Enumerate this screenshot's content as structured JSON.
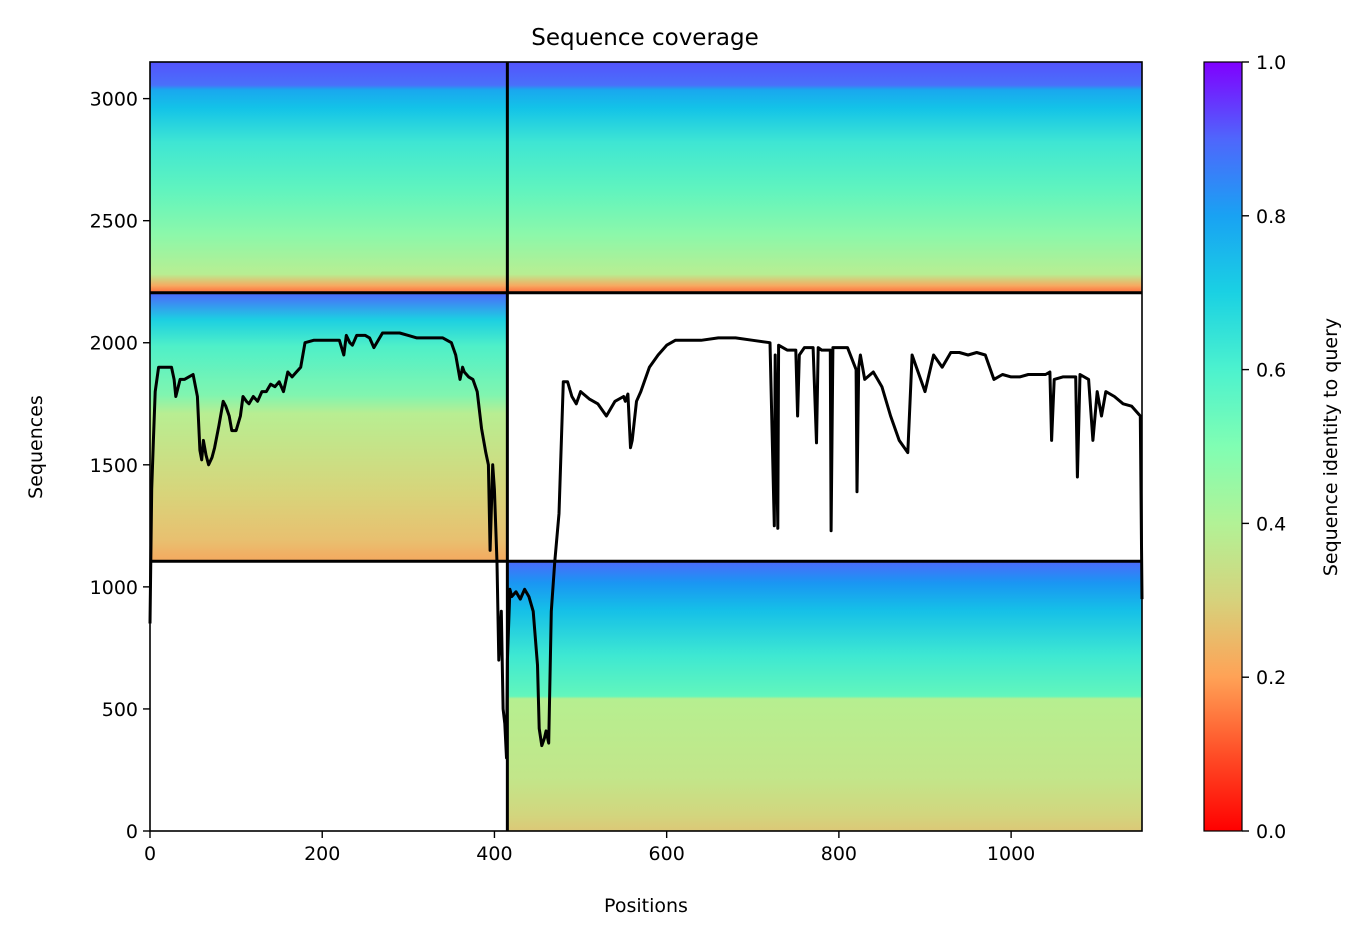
{
  "chart_data": {
    "type": "heatmap",
    "title": "Sequence coverage",
    "xlabel": "Positions",
    "ylabel": "Sequences",
    "xlim": [
      0,
      1152
    ],
    "ylim": [
      0,
      3150
    ],
    "xticks": [
      0,
      200,
      400,
      600,
      800,
      1000
    ],
    "yticks": [
      0,
      500,
      1000,
      1500,
      2000,
      2500,
      3000
    ],
    "colorbar": {
      "label": "Sequence identity to query",
      "range": [
        0,
        1
      ],
      "ticks": [
        0.0,
        0.2,
        0.4,
        0.6,
        0.8,
        1.0
      ],
      "tick_labels": [
        "0.0",
        "0.2",
        "0.4",
        "0.6",
        "0.8",
        "1.0"
      ],
      "colormap": "rainbow_r"
    },
    "blocks": [
      {
        "x": [
          0,
          415
        ],
        "y": [
          1105,
          2205
        ]
      },
      {
        "x": [
          415,
          1152
        ],
        "y": [
          0,
          1105
        ]
      },
      {
        "x": [
          0,
          415
        ],
        "y": [
          2205,
          3150
        ]
      },
      {
        "x": [
          415,
          1152
        ],
        "y": [
          2205,
          3150
        ]
      }
    ],
    "boundaries": {
      "x": [
        415
      ],
      "y": [
        1105,
        2205
      ]
    },
    "coverage_line": {
      "x": [
        0,
        2,
        4,
        6,
        8,
        10,
        12,
        15,
        20,
        25,
        28,
        30,
        35,
        40,
        45,
        50,
        55,
        58,
        60,
        62,
        65,
        68,
        72,
        75,
        80,
        85,
        88,
        92,
        95,
        100,
        105,
        108,
        112,
        115,
        120,
        125,
        130,
        135,
        140,
        145,
        150,
        155,
        160,
        165,
        170,
        175,
        180,
        190,
        200,
        210,
        220,
        225,
        228,
        232,
        235,
        240,
        245,
        250,
        255,
        260,
        270,
        280,
        290,
        300,
        310,
        320,
        330,
        340,
        350,
        355,
        360,
        363,
        365,
        370,
        375,
        380,
        385,
        390,
        393,
        395,
        398,
        400,
        403,
        405,
        408,
        410,
        412,
        414,
        415,
        418,
        420,
        425,
        430,
        435,
        440,
        445,
        450,
        452,
        455,
        458,
        460,
        463,
        466,
        470,
        475,
        480,
        485,
        490,
        495,
        500,
        510,
        520,
        530,
        540,
        550,
        552,
        555,
        558,
        560,
        565,
        570,
        580,
        590,
        600,
        610,
        620,
        640,
        660,
        680,
        700,
        720,
        725,
        726,
        729,
        730,
        740,
        750,
        752,
        754,
        760,
        770,
        774,
        776,
        780,
        790,
        791,
        793,
        800,
        810,
        820,
        821,
        823,
        825,
        830,
        840,
        850,
        860,
        870,
        880,
        885,
        890,
        900,
        910,
        920,
        930,
        940,
        950,
        960,
        970,
        980,
        990,
        1000,
        1010,
        1020,
        1030,
        1040,
        1045,
        1047,
        1050,
        1060,
        1070,
        1075,
        1077,
        1080,
        1090,
        1095,
        1100,
        1105,
        1110,
        1120,
        1130,
        1140,
        1145,
        1150,
        1152
      ],
      "y": [
        850,
        1400,
        1600,
        1800,
        1850,
        1900,
        1900,
        1900,
        1900,
        1900,
        1850,
        1780,
        1850,
        1850,
        1860,
        1870,
        1780,
        1560,
        1520,
        1600,
        1540,
        1500,
        1530,
        1570,
        1660,
        1760,
        1740,
        1700,
        1640,
        1640,
        1700,
        1780,
        1760,
        1750,
        1780,
        1760,
        1800,
        1800,
        1830,
        1820,
        1840,
        1800,
        1880,
        1860,
        1880,
        1900,
        2000,
        2010,
        2010,
        2010,
        2010,
        1950,
        2030,
        2000,
        1990,
        2030,
        2030,
        2030,
        2020,
        1980,
        2040,
        2040,
        2040,
        2030,
        2020,
        2020,
        2020,
        2020,
        2000,
        1950,
        1850,
        1900,
        1880,
        1860,
        1850,
        1800,
        1650,
        1550,
        1500,
        1150,
        1500,
        1400,
        1100,
        700,
        900,
        500,
        440,
        300,
        700,
        990,
        960,
        980,
        950,
        990,
        960,
        900,
        680,
        420,
        350,
        380,
        410,
        360,
        900,
        1100,
        1300,
        1840,
        1840,
        1780,
        1750,
        1800,
        1770,
        1750,
        1700,
        1760,
        1780,
        1760,
        1790,
        1570,
        1600,
        1760,
        1800,
        1900,
        1950,
        1990,
        2010,
        2010,
        2010,
        2020,
        2020,
        2010,
        2000,
        1250,
        1950,
        1240,
        1990,
        1970,
        1970,
        1700,
        1950,
        1980,
        1980,
        1590,
        1980,
        1970,
        1970,
        1230,
        1980,
        1980,
        1980,
        1890,
        1390,
        1900,
        1950,
        1850,
        1880,
        1820,
        1700,
        1600,
        1550,
        1950,
        1900,
        1800,
        1950,
        1900,
        1960,
        1960,
        1950,
        1960,
        1950,
        1850,
        1870,
        1860,
        1860,
        1870,
        1870,
        1870,
        1880,
        1600,
        1850,
        1860,
        1860,
        1860,
        1450,
        1870,
        1850,
        1600,
        1800,
        1700,
        1800,
        1780,
        1750,
        1740,
        1720,
        1700,
        950
      ]
    }
  }
}
